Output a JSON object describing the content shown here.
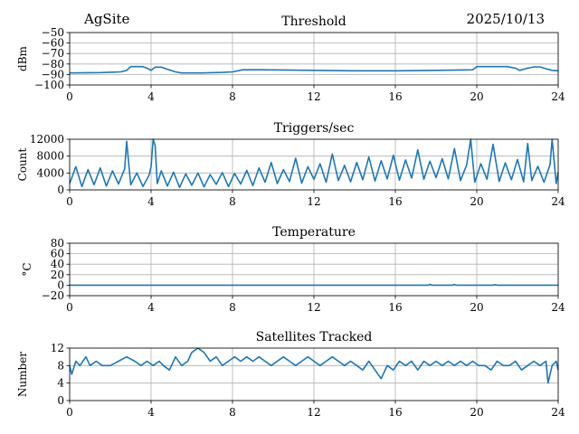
{
  "header": {
    "site": "AgSite",
    "date": "2025/10/13"
  },
  "colors": {
    "line": "#1f77b4",
    "grid": "#b0b0b0",
    "axis": "#000000"
  },
  "chart_data": [
    {
      "type": "line",
      "title": "Threshold",
      "xlabel": "",
      "ylabel": "dBm",
      "xlim": [
        0,
        24
      ],
      "ylim": [
        -100,
        -50
      ],
      "xticks": [
        0,
        4,
        8,
        12,
        16,
        20,
        24
      ],
      "xtick_labels": [
        "0",
        "4",
        "8",
        "12",
        "16",
        "20",
        "24"
      ],
      "yticks": [
        -100,
        -90,
        -80,
        -70,
        -60,
        -50
      ],
      "ytick_labels": [
        "−100",
        "−90",
        "−80",
        "−70",
        "−60",
        "−50"
      ],
      "grid": true,
      "series": [
        {
          "name": "Threshold",
          "x": [
            0,
            1.5,
            2.5,
            2.8,
            3.0,
            3.6,
            3.8,
            4.0,
            4.2,
            4.5,
            4.8,
            5.2,
            5.5,
            6.5,
            7.5,
            8.0,
            8.5,
            9.5,
            12,
            14,
            16,
            18,
            19.8,
            20.0,
            21.5,
            21.9,
            22.1,
            22.5,
            22.8,
            23.1,
            23.4,
            23.7,
            24
          ],
          "y": [
            -88.5,
            -88.2,
            -87.5,
            -86,
            -82.5,
            -82.5,
            -84,
            -86,
            -83,
            -83,
            -85,
            -87.5,
            -88.5,
            -88.5,
            -88,
            -87.5,
            -85.5,
            -85.5,
            -86,
            -86.5,
            -86.5,
            -86,
            -85.5,
            -82.5,
            -82.5,
            -84,
            -86,
            -84,
            -82.8,
            -82.8,
            -84.5,
            -86,
            -86.5
          ]
        }
      ]
    },
    {
      "type": "line",
      "title": "Triggers/sec",
      "xlabel": "",
      "ylabel": "Count",
      "xlim": [
        0,
        24
      ],
      "ylim": [
        0,
        12000
      ],
      "xticks": [
        0,
        4,
        8,
        12,
        16,
        20,
        24
      ],
      "xtick_labels": [
        "0",
        "4",
        "8",
        "12",
        "16",
        "20",
        "24"
      ],
      "yticks": [
        0,
        4000,
        8000,
        12000
      ],
      "ytick_labels": [
        "0",
        "4000",
        "8000",
        "12000"
      ],
      "grid": true,
      "series": [
        {
          "name": "Triggers",
          "x": [
            0,
            0.3,
            0.6,
            0.9,
            1.2,
            1.5,
            1.8,
            2.1,
            2.4,
            2.7,
            2.8,
            3.0,
            3.3,
            3.6,
            3.9,
            4.0,
            4.1,
            4.2,
            4.3,
            4.5,
            4.8,
            5.1,
            5.4,
            5.7,
            6.0,
            6.3,
            6.6,
            6.9,
            7.2,
            7.5,
            7.8,
            8.1,
            8.4,
            8.7,
            9.0,
            9.3,
            9.6,
            9.9,
            10.2,
            10.5,
            10.8,
            11.1,
            11.4,
            11.7,
            12.0,
            12.3,
            12.6,
            12.9,
            13.2,
            13.5,
            13.8,
            14.1,
            14.4,
            14.7,
            15.0,
            15.3,
            15.6,
            15.9,
            16.2,
            16.5,
            16.8,
            17.1,
            17.4,
            17.7,
            18.0,
            18.3,
            18.6,
            18.9,
            19.2,
            19.5,
            19.7,
            19.9,
            20.2,
            20.5,
            20.8,
            21.1,
            21.4,
            21.7,
            22.0,
            22.3,
            22.5,
            22.7,
            23.0,
            23.3,
            23.6,
            23.7,
            23.9,
            24.0
          ],
          "y": [
            1500,
            5500,
            800,
            4800,
            1200,
            5200,
            900,
            4500,
            1400,
            5000,
            11500,
            1200,
            4000,
            800,
            3500,
            5500,
            12000,
            10500,
            1500,
            4500,
            900,
            4200,
            600,
            3800,
            1100,
            4000,
            700,
            3600,
            1300,
            4100,
            800,
            3900,
            1400,
            4600,
            1000,
            5200,
            1800,
            6500,
            1500,
            4800,
            2000,
            7500,
            1600,
            5500,
            2500,
            6200,
            1800,
            8500,
            2200,
            5800,
            1900,
            6500,
            2400,
            7800,
            2100,
            6900,
            2600,
            8200,
            2300,
            7100,
            2800,
            9500,
            2500,
            6800,
            2900,
            7400,
            2600,
            9800,
            2200,
            5900,
            12000,
            1800,
            6200,
            2500,
            10800,
            2000,
            6400,
            2400,
            7200,
            1900,
            11000,
            2200,
            5600,
            1800,
            6000,
            12000,
            1500,
            4200
          ]
        }
      ]
    },
    {
      "type": "line",
      "title": "Temperature",
      "xlabel": "",
      "ylabel": "°C",
      "xlim": [
        0,
        24
      ],
      "ylim": [
        -20,
        80
      ],
      "xticks": [
        0,
        4,
        8,
        12,
        16,
        20,
        24
      ],
      "xtick_labels": [
        "0",
        "4",
        "8",
        "12",
        "16",
        "20",
        "24"
      ],
      "yticks": [
        -20,
        0,
        20,
        40,
        60,
        80
      ],
      "ytick_labels": [
        "−20",
        "0",
        "20",
        "40",
        "60",
        "80"
      ],
      "grid": true,
      "series": [
        {
          "name": "Temperature",
          "x": [
            0,
            17.6,
            17.7,
            17.8,
            18.8,
            18.9,
            19.0,
            20.8,
            20.9,
            21.0,
            24
          ],
          "y": [
            0,
            0,
            1.5,
            0,
            0,
            1.2,
            0,
            0,
            1.0,
            0,
            0
          ]
        }
      ]
    },
    {
      "type": "line",
      "title": "Satellites Tracked",
      "xlabel": "",
      "ylabel": "Number",
      "xlim": [
        0,
        24
      ],
      "ylim": [
        0,
        12
      ],
      "xticks": [
        0,
        4,
        8,
        12,
        16,
        20,
        24
      ],
      "xtick_labels": [
        "0",
        "4",
        "8",
        "12",
        "16",
        "20",
        "24"
      ],
      "yticks": [
        0,
        4,
        8,
        12
      ],
      "ytick_labels": [
        "0",
        "4",
        "8",
        "12"
      ],
      "grid": true,
      "series": [
        {
          "name": "Satellites",
          "x": [
            0,
            0.1,
            0.3,
            0.5,
            0.8,
            1.0,
            1.3,
            1.6,
            2.0,
            2.4,
            2.8,
            3.2,
            3.5,
            3.8,
            4.1,
            4.4,
            4.6,
            4.9,
            5.2,
            5.5,
            5.8,
            6.0,
            6.3,
            6.6,
            6.9,
            7.2,
            7.5,
            7.8,
            8.1,
            8.4,
            8.7,
            9.0,
            9.3,
            9.6,
            9.9,
            10.2,
            10.5,
            10.8,
            11.1,
            11.4,
            11.7,
            12.0,
            12.3,
            12.6,
            12.9,
            13.2,
            13.5,
            13.8,
            14.1,
            14.4,
            14.7,
            15.0,
            15.3,
            15.6,
            15.9,
            16.2,
            16.5,
            16.8,
            17.1,
            17.4,
            17.7,
            18.0,
            18.3,
            18.6,
            18.9,
            19.2,
            19.5,
            19.8,
            20.1,
            20.4,
            20.7,
            21.0,
            21.3,
            21.6,
            21.9,
            22.2,
            22.5,
            22.8,
            23.1,
            23.4,
            23.5,
            23.7,
            23.9,
            24.0
          ],
          "y": [
            8,
            6,
            9,
            8,
            10,
            8,
            9,
            8,
            8,
            9,
            10,
            9,
            8,
            9,
            8,
            9,
            8,
            7,
            10,
            8,
            9,
            11,
            12,
            11,
            9,
            10,
            8,
            9,
            10,
            9,
            10,
            9,
            10,
            9,
            8,
            9,
            10,
            9,
            8,
            9,
            10,
            9,
            8,
            9,
            10,
            9,
            8,
            9,
            8,
            7,
            9,
            7,
            5,
            8,
            7,
            9,
            8,
            9,
            7,
            9,
            8,
            9,
            8,
            9,
            8,
            9,
            8,
            9,
            8,
            8,
            7,
            9,
            8,
            8,
            9,
            7,
            8,
            9,
            8,
            9,
            4,
            8,
            9,
            7
          ]
        }
      ]
    }
  ]
}
